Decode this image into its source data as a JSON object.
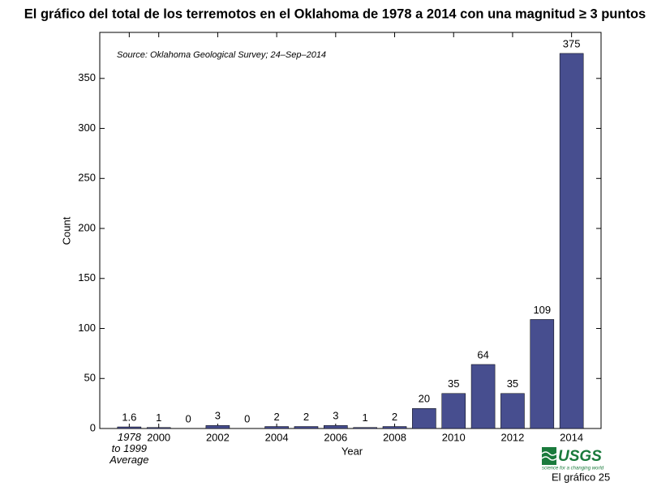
{
  "chart_data": {
    "type": "bar",
    "title": "El gráfico del total de los terremotos en el Oklahoma de 1978 a 2014  con una magnitud ≥ 3 puntos",
    "annotation": "Source: Oklahoma Geological Survey; 24–Sep–2014",
    "x_label": "Year",
    "y_label": "Count",
    "categories": [
      "1978\nto 1999\nAverage",
      "2000",
      null,
      "2002",
      null,
      "2004",
      null,
      "2006",
      null,
      "2008",
      null,
      "2010",
      null,
      "2012",
      null,
      "2014"
    ],
    "values": [
      1.6,
      1,
      0,
      3,
      0,
      2,
      2,
      3,
      1,
      2,
      20,
      35,
      64,
      35,
      109,
      375
    ],
    "color": "#474e8f",
    "ylim": [
      0,
      396
    ],
    "yticks": [
      0,
      50,
      100,
      150,
      200,
      250,
      300,
      350
    ],
    "grid": false
  },
  "footer": {
    "logo": "USGS",
    "tagline": "science for a changing world",
    "caption": "El gráfico 25"
  }
}
